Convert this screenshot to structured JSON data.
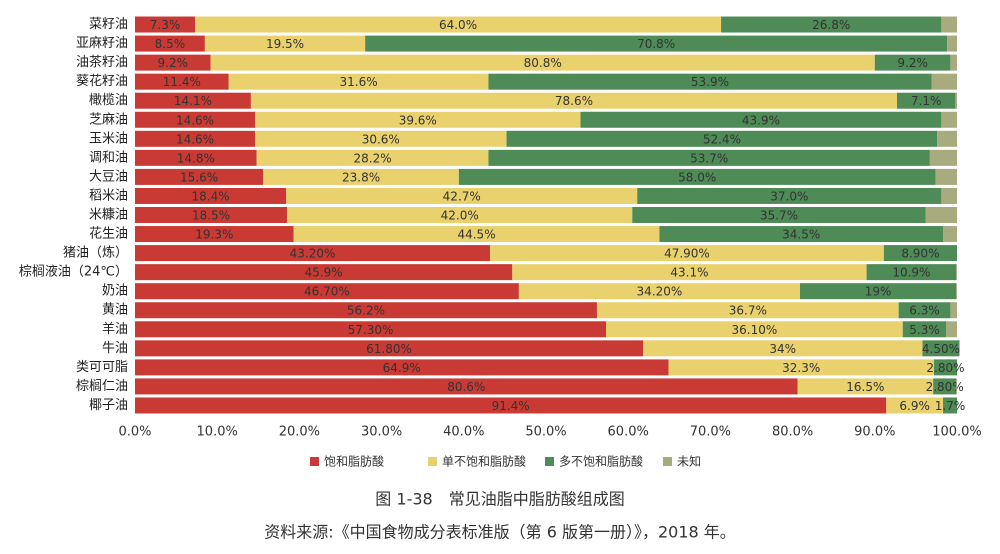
{
  "chart_data": {
    "type": "stacked-barh",
    "categories": [
      "菜籽油",
      "亚麻籽油",
      "油茶籽油",
      "葵花籽油",
      "橄榄油",
      "芝麻油",
      "玉米油",
      "调和油",
      "大豆油",
      "稻米油",
      "米糠油",
      "花生油",
      "猪油（炼）",
      "棕榈液油（24℃）",
      "奶油",
      "黄油",
      "羊油",
      "牛油",
      "类可可脂",
      "棕榈仁油",
      "椰子油"
    ],
    "series": [
      {
        "name": "饱和脂肪酸",
        "color": "#c93a34",
        "values": [
          7.3,
          8.5,
          9.2,
          11.4,
          14.1,
          14.6,
          14.6,
          14.8,
          15.6,
          18.4,
          18.5,
          19.3,
          43.2,
          45.9,
          46.7,
          56.2,
          57.3,
          61.8,
          64.9,
          80.6,
          91.4
        ],
        "value_labels": [
          "7.3%",
          "8.5%",
          "9.2%",
          "11.4%",
          "14.1%",
          "14.6%",
          "14.6%",
          "14.8%",
          "15.6%",
          "18.4%",
          "18.5%",
          "19.3%",
          "43.20%",
          "45.9%",
          "46.70%",
          "56.2%",
          "57.30%",
          "61.80%",
          "64.9%",
          "80.6%",
          "91.4%"
        ]
      },
      {
        "name": "单不饱和脂肪酸",
        "color": "#e9d16e",
        "values": [
          64.0,
          19.5,
          80.8,
          31.6,
          78.6,
          39.6,
          30.6,
          28.2,
          23.8,
          42.7,
          42.0,
          44.5,
          47.9,
          43.1,
          34.2,
          36.7,
          36.1,
          34,
          32.3,
          16.5,
          6.9
        ],
        "value_labels": [
          "64.0%",
          "19.5%",
          "80.8%",
          "31.6%",
          "78.6%",
          "39.6%",
          "30.6%",
          "28.2%",
          "23.8%",
          "42.7%",
          "42.0%",
          "44.5%",
          "47.90%",
          "43.1%",
          "34.20%",
          "36.7%",
          "36.10%",
          "34%",
          "32.3%",
          "16.5%",
          "6.9%"
        ]
      },
      {
        "name": "多不饱和脂肪酸",
        "color": "#4e8b57",
        "values": [
          26.8,
          70.8,
          9.2,
          53.9,
          7.1,
          43.9,
          52.4,
          53.7,
          58.0,
          37.0,
          35.7,
          34.5,
          8.9,
          10.9,
          19,
          6.3,
          5.3,
          4.5,
          2.8,
          2.8,
          1.7
        ],
        "value_labels": [
          "26.8%",
          "70.8%",
          "9.2%",
          "53.9%",
          "7.1%",
          "43.9%",
          "52.4%",
          "53.7%",
          "58.0%",
          "37.0%",
          "35.7%",
          "34.5%",
          "8.90%",
          "10.9%",
          "19%",
          "6.3%",
          "5.3%",
          "4.50%",
          "2.80%",
          "2.80%",
          "1.7%"
        ]
      },
      {
        "name": "未知",
        "color": "#a7ab7e",
        "values": [
          1.9,
          1.2,
          0.8,
          3.1,
          0.2,
          1.9,
          2.4,
          3.3,
          2.6,
          1.9,
          3.8,
          1.7,
          0,
          0.1,
          0.1,
          0.8,
          1.3,
          0,
          0,
          0.1,
          0
        ]
      }
    ],
    "xlim": [
      0,
      100
    ],
    "xticks": [
      {
        "value": 0,
        "label": "0.0%"
      },
      {
        "value": 10,
        "label": "10.0%"
      },
      {
        "value": 20,
        "label": "20.0%"
      },
      {
        "value": 30,
        "label": "30.0%"
      },
      {
        "value": 40,
        "label": "40.0%"
      },
      {
        "value": 50,
        "label": "50.0%"
      },
      {
        "value": 60,
        "label": "60.0%"
      },
      {
        "value": 70,
        "label": "70.0%"
      },
      {
        "value": 80,
        "label": "80.0%"
      },
      {
        "value": 90,
        "label": "90.0%"
      },
      {
        "value": 100,
        "label": "100.0%"
      }
    ],
    "legend": "bottom",
    "caption": "图 1-38　常见油脂中脂肪酸组成图",
    "source": "资料来源:《中国食物成分表标准版（第 6 版第一册）》，2018 年。"
  }
}
